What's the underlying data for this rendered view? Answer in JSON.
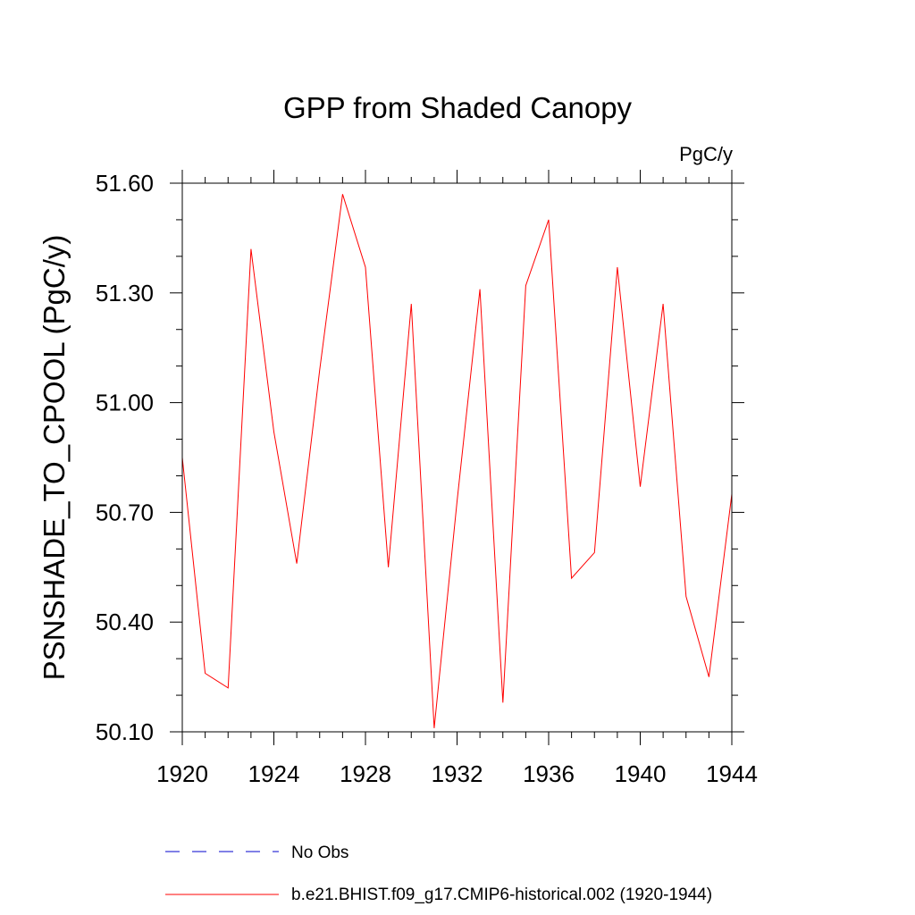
{
  "chart_data": {
    "type": "line",
    "title": "GPP from Shaded Canopy",
    "units_label": "PgC/y",
    "ylabel": "PSNSHADE_TO_CPOOL  (PgC/y)",
    "xlabel": "",
    "xlim": [
      1920,
      1944
    ],
    "ylim": [
      50.1,
      51.6
    ],
    "x_ticks": [
      1920,
      1924,
      1928,
      1932,
      1936,
      1940,
      1944
    ],
    "x_tick_labels": [
      "1920",
      "1924",
      "1928",
      "1932",
      "1936",
      "1940",
      "1944"
    ],
    "y_ticks": [
      50.1,
      50.4,
      50.7,
      51.0,
      51.3,
      51.6
    ],
    "y_tick_labels": [
      "50.10",
      "50.40",
      "50.70",
      "51.00",
      "51.30",
      "51.60"
    ],
    "grid": false,
    "legend_position": "bottom",
    "series": [
      {
        "name": "b.e21.BHIST.f09_g17.CMIP6-historical.002 (1920-1944)",
        "color": "#ff0000",
        "style": "solid",
        "x": [
          1920,
          1921,
          1922,
          1923,
          1924,
          1925,
          1926,
          1927,
          1928,
          1929,
          1930,
          1931,
          1932,
          1933,
          1934,
          1935,
          1936,
          1937,
          1938,
          1939,
          1940,
          1941,
          1942,
          1943,
          1944
        ],
        "values": [
          50.85,
          50.26,
          50.22,
          51.42,
          50.92,
          50.56,
          51.09,
          51.57,
          51.37,
          50.55,
          51.27,
          50.11,
          50.73,
          51.31,
          50.18,
          51.32,
          51.5,
          50.52,
          50.59,
          51.37,
          50.77,
          51.27,
          50.47,
          50.25,
          50.75
        ]
      }
    ],
    "legend": [
      {
        "label": "No Obs",
        "color": "#0000cd",
        "style": "dashed"
      },
      {
        "label": "b.e21.BHIST.f09_g17.CMIP6-historical.002 (1920-1944)",
        "color": "#ff0000",
        "style": "solid"
      }
    ]
  }
}
